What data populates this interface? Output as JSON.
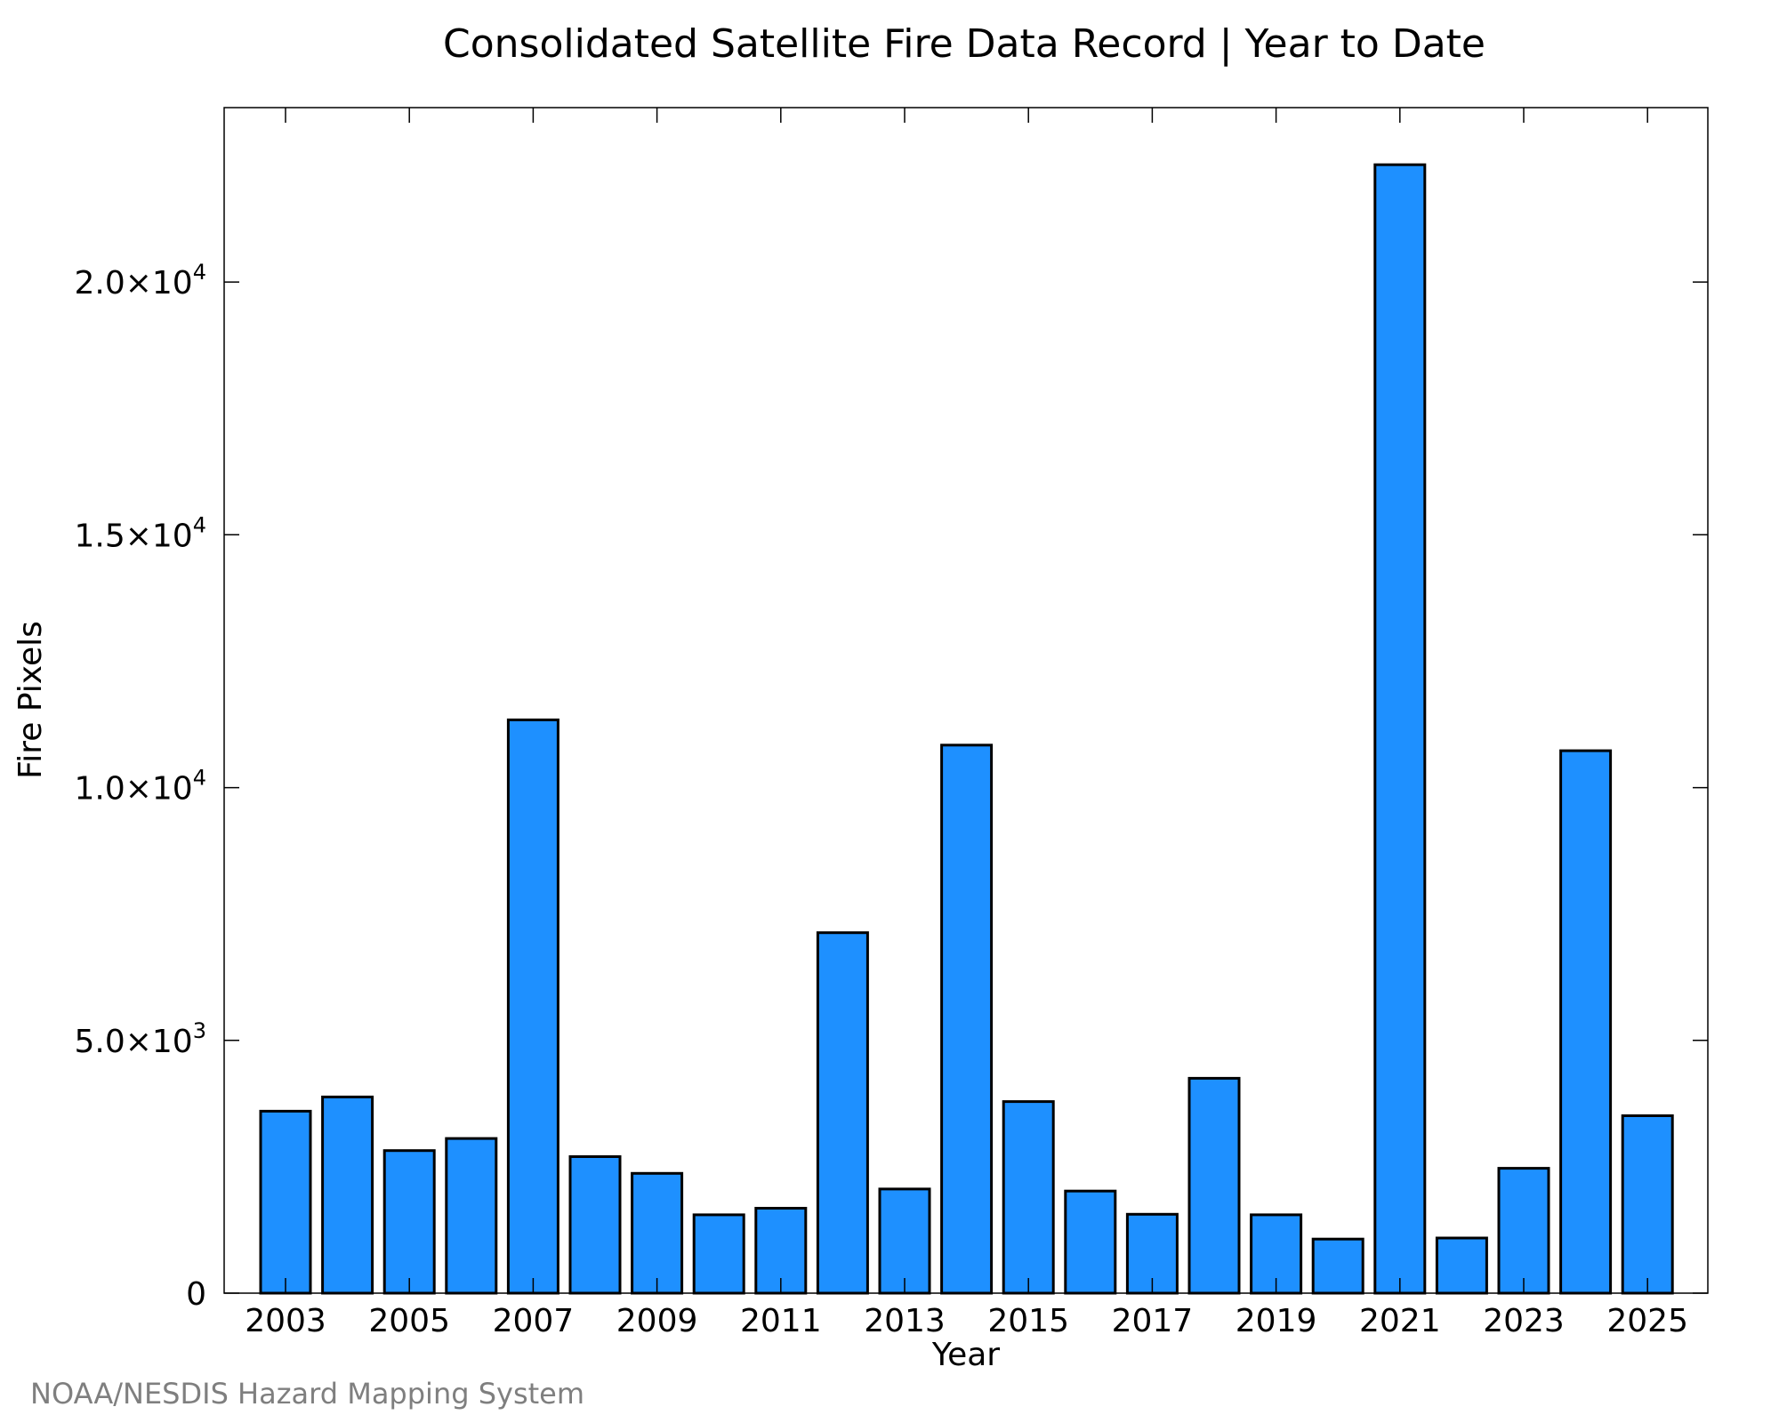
{
  "colors": {
    "bar_fill": "#1e90ff",
    "bar_stroke": "#000000",
    "credit": "#7f7f7f"
  },
  "credit": "NOAA/NESDIS Hazard Mapping System",
  "chart_data": {
    "type": "bar",
    "title": "Consolidated Satellite Fire Data Record | Year to Date",
    "xlabel": "Year",
    "ylabel": "Fire Pixels",
    "categories": [
      "2003",
      "2004",
      "2005",
      "2006",
      "2007",
      "2008",
      "2009",
      "2010",
      "2011",
      "2012",
      "2013",
      "2014",
      "2015",
      "2016",
      "2017",
      "2018",
      "2019",
      "2020",
      "2021",
      "2022",
      "2023",
      "2024",
      "2025"
    ],
    "values": [
      3600,
      3880,
      2820,
      3060,
      11340,
      2700,
      2370,
      1550,
      1680,
      7130,
      2060,
      10840,
      3790,
      2020,
      1560,
      4250,
      1550,
      1070,
      22320,
      1090,
      2470,
      10730,
      3510
    ],
    "x_tick_labels": [
      "2003",
      "2005",
      "2007",
      "2009",
      "2011",
      "2013",
      "2015",
      "2017",
      "2019",
      "2021",
      "2023",
      "2025"
    ],
    "y_ticks": [
      {
        "value": 0,
        "mantissa": "0",
        "exponent": ""
      },
      {
        "value": 5000,
        "mantissa": "5.0×10",
        "exponent": "3"
      },
      {
        "value": 10000,
        "mantissa": "1.0×10",
        "exponent": "4"
      },
      {
        "value": 15000,
        "mantissa": "1.5×10",
        "exponent": "4"
      },
      {
        "value": 20000,
        "mantissa": "2.0×10",
        "exponent": "4"
      }
    ],
    "ylim": [
      0,
      23450
    ],
    "grid": false,
    "legend": "none"
  }
}
